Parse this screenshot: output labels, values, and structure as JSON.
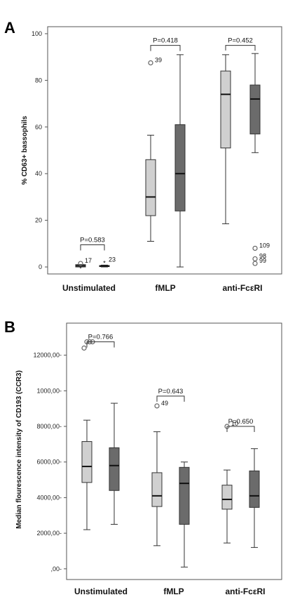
{
  "chart_data": [
    {
      "panel": "A",
      "type": "box",
      "ylabel": "% CD63+ bassophils",
      "ylim": [
        -3,
        103
      ],
      "yticks": [
        0,
        20,
        40,
        60,
        80,
        100
      ],
      "ytick_labels": [
        "0",
        "20",
        "40",
        "60",
        "80",
        "100"
      ],
      "categories": [
        "Unstimulated",
        "fMLP",
        "anti-FcεRI"
      ],
      "colors": {
        "light": "#d0d0d0",
        "dark": "#6b6b6b"
      },
      "boxes": [
        {
          "category": 0,
          "shade": "light",
          "min": 0,
          "q1": 0,
          "median": 0.5,
          "q3": 1,
          "max": 1,
          "outliers": [
            {
              "y": 1.5,
              "label": "17",
              "marker": "circle"
            },
            {
              "y": -0.5,
              "label": "",
              "marker": "star"
            }
          ]
        },
        {
          "category": 0,
          "shade": "dark",
          "min": 0,
          "q1": 0.2,
          "median": 0.4,
          "q3": 0.6,
          "max": 0.8,
          "outliers": [
            {
              "y": 2,
              "label": "23",
              "marker": "star"
            }
          ]
        },
        {
          "category": 1,
          "shade": "light",
          "min": 11,
          "q1": 22,
          "median": 30,
          "q3": 46,
          "max": 56.5,
          "outliers": [
            {
              "y": 87.5,
              "label": "39",
              "marker": "circle"
            }
          ]
        },
        {
          "category": 1,
          "shade": "dark",
          "min": 0,
          "q1": 24,
          "median": 40,
          "q3": 61,
          "max": 91,
          "outliers": []
        },
        {
          "category": 2,
          "shade": "light",
          "min": 18.5,
          "q1": 51,
          "median": 74,
          "q3": 84,
          "max": 91,
          "outliers": []
        },
        {
          "category": 2,
          "shade": "dark",
          "min": 49,
          "q1": 57,
          "median": 72,
          "q3": 78,
          "max": 91.5,
          "outliers": [
            {
              "y": 8,
              "label": "109",
              "marker": "circle"
            },
            {
              "y": 3.5,
              "label": "98",
              "marker": "circle"
            },
            {
              "y": 1.5,
              "label": "99",
              "marker": "circle"
            }
          ]
        }
      ],
      "pvalues": [
        {
          "label": "P=0.583",
          "between": [
            0,
            1
          ],
          "bracket_y": 9.5
        },
        {
          "label": "P=0.418",
          "between": [
            2,
            3
          ],
          "bracket_y": 95
        },
        {
          "label": "P=0.452",
          "between": [
            4,
            5
          ],
          "bracket_y": 95
        }
      ]
    },
    {
      "panel": "B",
      "type": "box",
      "ylabel": "Median flourescence intensity of CD193 (CCR3)",
      "ylim": [
        -600,
        13800
      ],
      "yticks": [
        0,
        2000,
        4000,
        6000,
        8000,
        10000,
        12000
      ],
      "ytick_labels": [
        ",00-",
        "2000,00-",
        "4000,00-",
        "6000,00-",
        "8000,00-",
        "1000,00-",
        "12000,00-"
      ],
      "categories": [
        "Unstimulated",
        "fMLP",
        "anti-FcεRI"
      ],
      "colors": {
        "light": "#d0d0d0",
        "dark": "#6b6b6b"
      },
      "boxes": [
        {
          "category": 0,
          "shade": "light",
          "min": 2200,
          "q1": 4850,
          "median": 5750,
          "q3": 7150,
          "max": 8350,
          "outliers": [
            {
              "y": 12400,
              "label": "",
              "marker": "circle"
            },
            {
              "y": 12750,
              "label": "",
              "marker": "circle"
            },
            {
              "y": 12750,
              "label": "",
              "marker": "circle"
            },
            {
              "y": 12750,
              "label": "",
              "marker": "circle"
            }
          ]
        },
        {
          "category": 0,
          "shade": "dark",
          "min": 2500,
          "q1": 4400,
          "median": 5800,
          "q3": 6800,
          "max": 9300,
          "outliers": []
        },
        {
          "category": 1,
          "shade": "light",
          "min": 1300,
          "q1": 3500,
          "median": 4100,
          "q3": 5400,
          "max": 7700,
          "outliers": [
            {
              "y": 9150,
              "label": "49",
              "marker": "circle"
            }
          ]
        },
        {
          "category": 1,
          "shade": "dark",
          "min": 100,
          "q1": 2500,
          "median": 4800,
          "q3": 5700,
          "max": 6000,
          "outliers": []
        },
        {
          "category": 2,
          "shade": "light",
          "min": 1450,
          "q1": 3350,
          "median": 3900,
          "q3": 4700,
          "max": 5550,
          "outliers": [
            {
              "y": 8000,
              "label": "10",
              "marker": "circle"
            }
          ]
        },
        {
          "category": 2,
          "shade": "dark",
          "min": 1200,
          "q1": 3450,
          "median": 4100,
          "q3": 5500,
          "max": 6750,
          "outliers": []
        }
      ],
      "pvalues": [
        {
          "label": "P=0.766",
          "between": [
            0,
            1
          ],
          "bracket_y": 12750
        },
        {
          "label": "P=0.643",
          "between": [
            2,
            3
          ],
          "bracket_y": 9700
        },
        {
          "label": "P=0.650",
          "between": [
            4,
            5
          ],
          "bracket_y": 8000
        }
      ]
    }
  ]
}
